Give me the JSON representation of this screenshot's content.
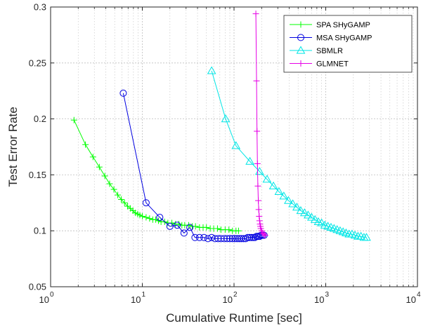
{
  "chart_data": {
    "type": "line",
    "title": "",
    "xlabel": "Cumulative Runtime [sec]",
    "ylabel": "Test Error Rate",
    "xscale": "log",
    "xlim": [
      1,
      10000
    ],
    "ylim": [
      0.05,
      0.3
    ],
    "grid": true,
    "legend_position": "top-right",
    "x_ticks": [
      {
        "value": 1,
        "base": "10",
        "exp": "0"
      },
      {
        "value": 10,
        "base": "10",
        "exp": "1"
      },
      {
        "value": 100,
        "base": "10",
        "exp": "2"
      },
      {
        "value": 1000,
        "base": "10",
        "exp": "3"
      },
      {
        "value": 10000,
        "base": "10",
        "exp": "4"
      }
    ],
    "y_ticks": [
      {
        "value": 0.05,
        "label": "0.05"
      },
      {
        "value": 0.1,
        "label": "0.1"
      },
      {
        "value": 0.15,
        "label": "0.15"
      },
      {
        "value": 0.2,
        "label": "0.2"
      },
      {
        "value": 0.25,
        "label": "0.25"
      },
      {
        "value": 0.3,
        "label": "0.3"
      }
    ],
    "series": [
      {
        "name": "SPA SHyGAMP",
        "color": "#00ff00",
        "marker": "plus",
        "x": [
          1.8,
          2.4,
          2.9,
          3.4,
          3.9,
          4.4,
          4.9,
          5.4,
          5.9,
          6.4,
          6.9,
          7.4,
          7.9,
          8.4,
          8.9,
          9.4,
          10,
          11,
          12,
          13,
          14,
          15,
          16,
          17.5,
          19,
          21,
          23,
          25,
          27,
          29,
          32,
          35,
          38,
          42,
          46,
          50,
          55,
          60,
          66,
          72,
          80,
          88,
          96,
          105,
          112
        ],
        "y": [
          0.199,
          0.177,
          0.166,
          0.157,
          0.149,
          0.142,
          0.137,
          0.132,
          0.128,
          0.125,
          0.122,
          0.12,
          0.118,
          0.116,
          0.115,
          0.114,
          0.113,
          0.112,
          0.111,
          0.11,
          0.11,
          0.109,
          0.108,
          0.108,
          0.107,
          0.107,
          0.106,
          0.106,
          0.105,
          0.105,
          0.105,
          0.104,
          0.104,
          0.103,
          0.103,
          0.103,
          0.102,
          0.102,
          0.102,
          0.101,
          0.101,
          0.101,
          0.1,
          0.1,
          0.1
        ]
      },
      {
        "name": "MSA SHyGAMP",
        "color": "#0000e0",
        "marker": "circle",
        "x": [
          6.2,
          11,
          15.5,
          20,
          24,
          28.5,
          33,
          37.5,
          42,
          47,
          52,
          57,
          62,
          67,
          72,
          78,
          84,
          90,
          96,
          102,
          108,
          114,
          120,
          127,
          134,
          141,
          148,
          155,
          162,
          169,
          176,
          183,
          190,
          197,
          205,
          213
        ],
        "y": [
          0.223,
          0.125,
          0.112,
          0.104,
          0.105,
          0.098,
          0.103,
          0.094,
          0.094,
          0.094,
          0.093,
          0.094,
          0.093,
          0.093,
          0.093,
          0.093,
          0.093,
          0.093,
          0.093,
          0.093,
          0.093,
          0.093,
          0.093,
          0.093,
          0.093,
          0.094,
          0.094,
          0.094,
          0.094,
          0.094,
          0.095,
          0.095,
          0.095,
          0.096,
          0.096,
          0.096
        ]
      },
      {
        "name": "SBMLR",
        "color": "#00e6e6",
        "marker": "triangle",
        "x": [
          57,
          81,
          105,
          149,
          190,
          229,
          269,
          309,
          349,
          392,
          437,
          484,
          534,
          587,
          642,
          701,
          764,
          830,
          901,
          976,
          1056,
          1141,
          1232,
          1330,
          1434,
          1546,
          1666,
          1795,
          1934,
          2084,
          2246,
          2421,
          2611,
          2780
        ],
        "y": [
          0.243,
          0.2,
          0.176,
          0.162,
          0.153,
          0.146,
          0.14,
          0.135,
          0.131,
          0.127,
          0.124,
          0.121,
          0.118,
          0.116,
          0.114,
          0.112,
          0.11,
          0.108,
          0.107,
          0.105,
          0.104,
          0.103,
          0.102,
          0.101,
          0.1,
          0.099,
          0.098,
          0.097,
          0.097,
          0.096,
          0.095,
          0.095,
          0.094,
          0.094
        ]
      },
      {
        "name": "GLMNET",
        "color": "#e600e6",
        "marker": "plus",
        "x": [
          173,
          176,
          178,
          180,
          182,
          184,
          186,
          188,
          190,
          192,
          194,
          196,
          200,
          205,
          212,
          218
        ],
        "y": [
          0.294,
          0.234,
          0.189,
          0.16,
          0.14,
          0.127,
          0.119,
          0.113,
          0.109,
          0.106,
          0.104,
          0.102,
          0.1,
          0.098,
          0.097,
          0.096
        ]
      }
    ]
  }
}
